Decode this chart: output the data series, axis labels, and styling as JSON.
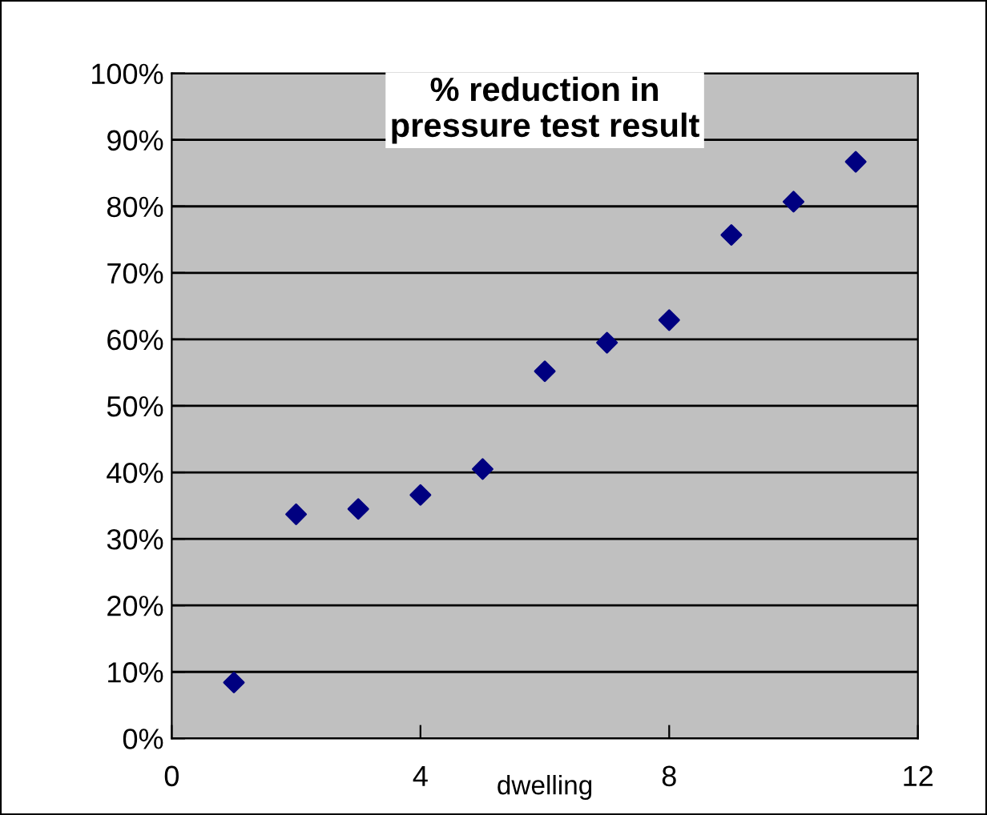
{
  "chart_data": {
    "type": "scatter",
    "title": "% reduction in\npressure test result",
    "xlabel": "dwelling",
    "x": [
      1,
      2,
      3,
      4,
      5,
      6,
      7,
      8,
      9,
      10,
      11
    ],
    "series": [
      {
        "color": "#000080",
        "values": [
          8.4,
          33.7,
          34.5,
          36.6,
          40.5,
          55.2,
          59.5,
          62.9,
          75.7,
          80.7,
          86.7
        ]
      }
    ],
    "xlim": [
      0,
      12
    ],
    "xticks": [
      0,
      4,
      8,
      12
    ],
    "ylim": [
      0,
      100
    ],
    "yticks": [
      {
        "value": 0,
        "label": "0%"
      },
      {
        "value": 10,
        "label": "10%"
      },
      {
        "value": 20,
        "label": "20%"
      },
      {
        "value": 30,
        "label": "30%"
      },
      {
        "value": 40,
        "label": "40%"
      },
      {
        "value": 50,
        "label": "50%"
      },
      {
        "value": 60,
        "label": "60%"
      },
      {
        "value": 70,
        "label": "70%"
      },
      {
        "value": 80,
        "label": "80%"
      },
      {
        "value": 90,
        "label": "90%"
      },
      {
        "value": 100,
        "label": "100%"
      }
    ],
    "grid": "y",
    "marker": "diamond",
    "legend": false
  }
}
